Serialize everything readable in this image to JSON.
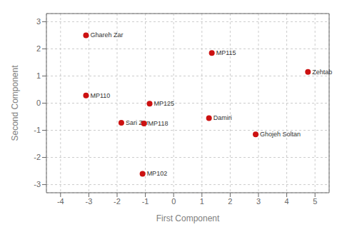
{
  "chart_data": {
    "type": "scatter",
    "x_label": "First Component",
    "y_label": "Second Component",
    "x": [
      -3.1,
      1.35,
      4.75,
      -3.1,
      -0.85,
      1.25,
      -1.85,
      -1.05,
      2.9,
      -1.1
    ],
    "values": [
      2.5,
      1.85,
      1.15,
      0.28,
      -0.02,
      -0.55,
      -0.72,
      -0.75,
      -1.15,
      -2.6
    ],
    "labels": [
      "Ghareh Zar",
      "MP115",
      "Zehtab",
      "MP110",
      "MP125",
      "Damiri",
      "Sari Zar",
      "MP118",
      "Ghojeh Soltan",
      "MP102"
    ],
    "color": "#cc1111",
    "xlim": [
      -4.5,
      5.5
    ],
    "ylim": [
      -3.3,
      3.3
    ],
    "xticks": [
      -4,
      -3,
      -2,
      -1,
      0,
      1,
      2,
      3,
      4,
      5
    ],
    "yticks": [
      -3,
      -2,
      -1,
      0,
      1,
      2,
      3
    ],
    "grid": true
  }
}
